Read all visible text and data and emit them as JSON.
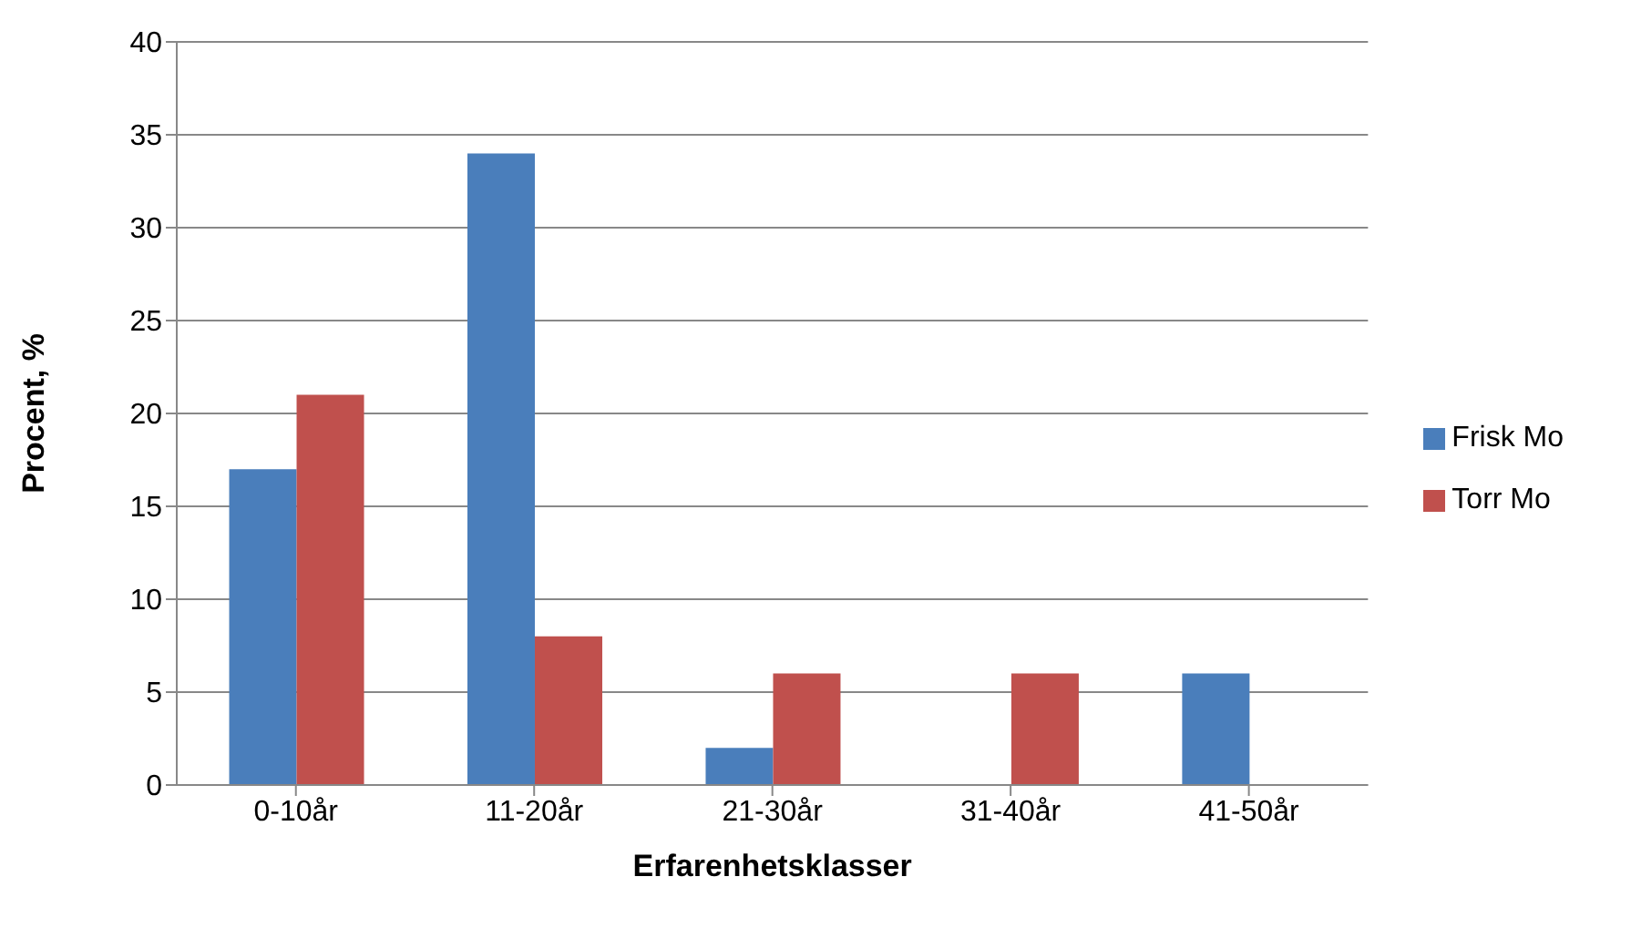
{
  "chart_data": {
    "type": "bar",
    "xlabel": "Erfarenhetsklasser",
    "ylabel": "Procent, %",
    "categories": [
      "0-10år",
      "11-20år",
      "21-30år",
      "31-40år",
      "41-50år"
    ],
    "series": [
      {
        "name": "Frisk Mo",
        "color": "#4a7ebb",
        "values": [
          17,
          34,
          2,
          0,
          6
        ]
      },
      {
        "name": "Torr Mo",
        "color": "#c0504d",
        "values": [
          21,
          8,
          6,
          6,
          0
        ]
      }
    ],
    "ylim": [
      0,
      40
    ],
    "yticks": [
      0,
      5,
      10,
      15,
      20,
      25,
      30,
      35,
      40
    ],
    "grid": "y",
    "legend": "right"
  }
}
